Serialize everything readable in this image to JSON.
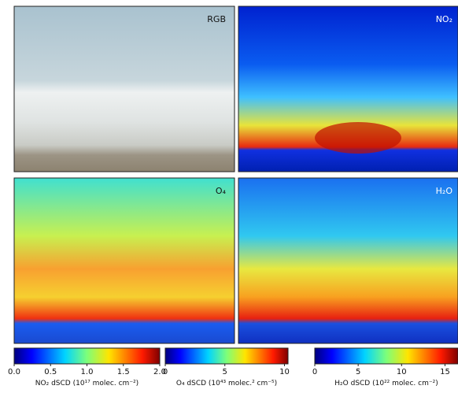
{
  "panels": [
    {
      "label": "RGB"
    },
    {
      "label": "NO₂"
    },
    {
      "label": "O₄"
    },
    {
      "label": "H₂O"
    }
  ],
  "colorbars": [
    {
      "label": "NO₂ dSCD (10¹⁷ molec. cm⁻²)",
      "lim": [
        0,
        2
      ],
      "ticks": [
        {
          "value": 0,
          "label": "0.0"
        },
        {
          "value": 0.5,
          "label": "0.5"
        },
        {
          "value": 1,
          "label": "1.0"
        },
        {
          "value": 1.5,
          "label": "1.5"
        },
        {
          "value": 2,
          "label": "2.0"
        }
      ]
    },
    {
      "label": "O₄ dSCD (10⁴³ molec.² cm⁻⁵)",
      "lim": [
        0,
        10.3
      ],
      "ticks": [
        0,
        5,
        10
      ]
    },
    {
      "label": "H₂O dSCD (10²² molec. cm⁻²)",
      "lim": [
        0,
        16.5
      ],
      "ticks": [
        0,
        5,
        10,
        15
      ]
    }
  ]
}
